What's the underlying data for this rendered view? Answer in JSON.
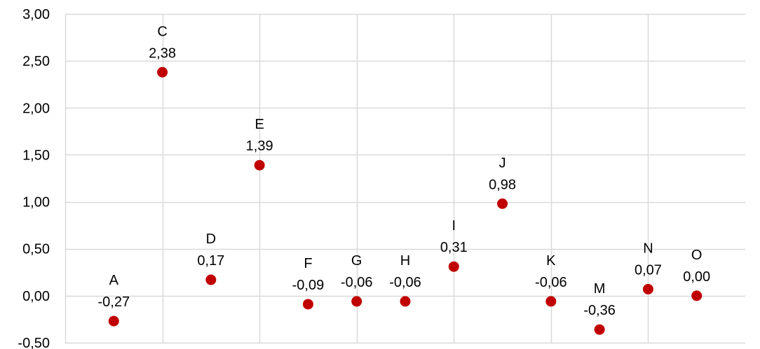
{
  "chart_data": {
    "type": "scatter",
    "title": "",
    "xlabel": "",
    "ylabel": "",
    "ylim": [
      -0.5,
      3.0
    ],
    "yticks": [
      "-0,50",
      "0,00",
      "0,50",
      "1,00",
      "1,50",
      "2,00",
      "2,50",
      "3,00"
    ],
    "ytick_values": [
      -0.5,
      0.0,
      0.5,
      1.0,
      1.5,
      2.0,
      2.5,
      3.0
    ],
    "xlim": [
      0,
      14
    ],
    "vertical_grid_x": [
      2,
      4,
      6,
      8,
      10,
      12
    ],
    "grid": true,
    "marker_color": "#c00000",
    "grid_color": "#d9d9d9",
    "points": [
      {
        "name": "A",
        "x": 1.0,
        "y": -0.27,
        "value_label": "-0,27"
      },
      {
        "name": "C",
        "x": 2.0,
        "y": 2.38,
        "value_label": "2,38"
      },
      {
        "name": "D",
        "x": 3.0,
        "y": 0.17,
        "value_label": "0,17"
      },
      {
        "name": "E",
        "x": 4.0,
        "y": 1.39,
        "value_label": "1,39"
      },
      {
        "name": "F",
        "x": 5.0,
        "y": -0.09,
        "value_label": "-0,09"
      },
      {
        "name": "G",
        "x": 6.0,
        "y": -0.06,
        "value_label": "-0,06"
      },
      {
        "name": "H",
        "x": 7.0,
        "y": -0.06,
        "value_label": "-0,06"
      },
      {
        "name": "I",
        "x": 8.0,
        "y": 0.31,
        "value_label": "0,31"
      },
      {
        "name": "J",
        "x": 9.0,
        "y": 0.98,
        "value_label": "0,98"
      },
      {
        "name": "K",
        "x": 10.0,
        "y": -0.06,
        "value_label": "-0,06"
      },
      {
        "name": "M",
        "x": 11.0,
        "y": -0.36,
        "value_label": "-0,36"
      },
      {
        "name": "N",
        "x": 12.0,
        "y": 0.07,
        "value_label": "0,07"
      },
      {
        "name": "O",
        "x": 13.0,
        "y": 0.0,
        "value_label": "0,00"
      }
    ]
  }
}
